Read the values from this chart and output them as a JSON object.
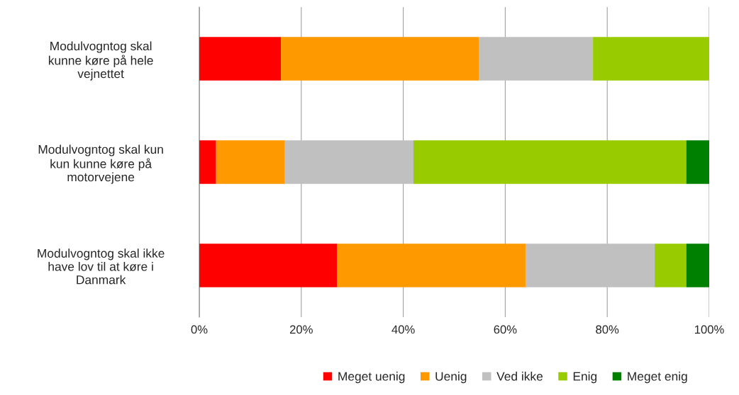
{
  "chart_data": {
    "type": "bar",
    "orientation": "horizontal",
    "stacked": true,
    "categories": [
      "Modulvogntog skal\nkunne køre på hele\nvejnettet",
      "Modulvogntog skal kun\nkun kunne køre på\nmotorvejene",
      "Modulvogntog skal ikke\nhave lov til at køre i\nDanmark"
    ],
    "series": [
      {
        "name": "Meget uenig",
        "color": "#ff0000",
        "values": [
          16.0,
          3.3,
          27.0
        ]
      },
      {
        "name": "Uenig",
        "color": "#ff9900",
        "values": [
          38.8,
          13.5,
          37.0
        ]
      },
      {
        "name": "Ved ikke",
        "color": "#c0c0c0",
        "values": [
          22.4,
          25.2,
          25.3
        ]
      },
      {
        "name": "Enig",
        "color": "#99cc00",
        "values": [
          22.8,
          53.5,
          6.2
        ]
      },
      {
        "name": "Meget enig",
        "color": "#008000",
        "values": [
          null,
          4.5,
          4.5
        ]
      }
    ],
    "xlim": [
      0,
      100
    ],
    "xticks": [
      {
        "value": 0,
        "label": "0%"
      },
      {
        "value": 20,
        "label": "20%"
      },
      {
        "value": 40,
        "label": "40%"
      },
      {
        "value": 60,
        "label": "60%"
      },
      {
        "value": 80,
        "label": "80%"
      },
      {
        "value": 100,
        "label": "100%"
      }
    ],
    "grid": "x",
    "legend": "bottom"
  }
}
